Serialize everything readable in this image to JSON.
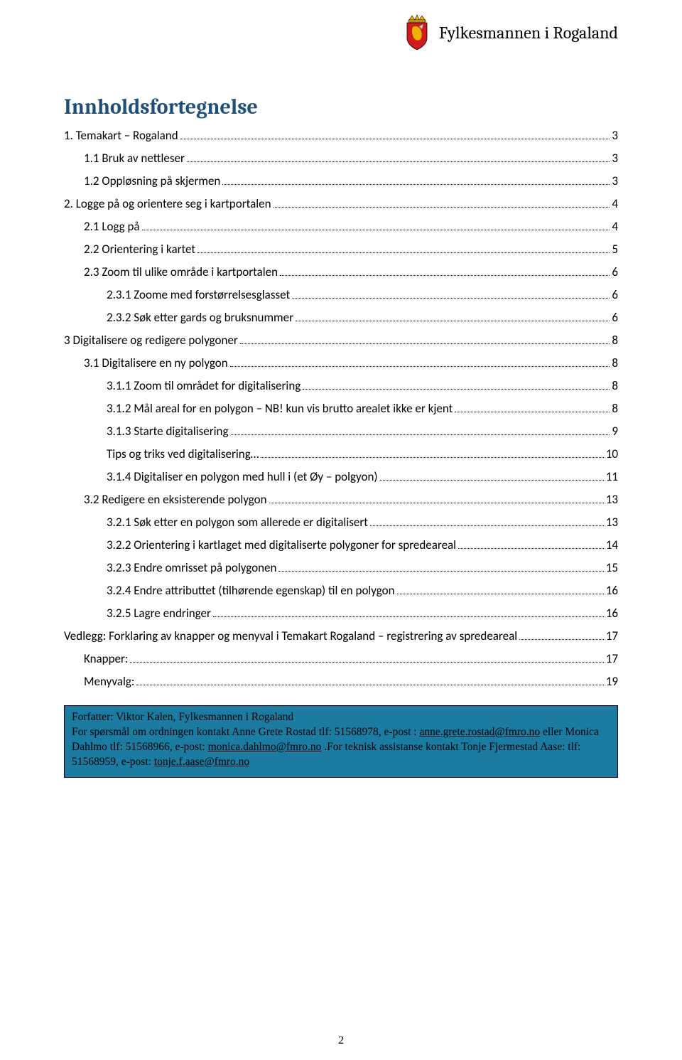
{
  "header": {
    "org_name": "Fylkesmannen i Rogaland"
  },
  "toc_title": "Innholdsfortegnelse",
  "toc_title_color": "#1f4e79",
  "toc": [
    {
      "level": 0,
      "label": "1.    Temakart – Rogaland",
      "page": "3"
    },
    {
      "level": 1,
      "label": "1.1 Bruk av nettleser",
      "page": "3"
    },
    {
      "level": 1,
      "label": "1.2 Oppløsning på skjermen",
      "page": "3"
    },
    {
      "level": 0,
      "label": "2.    Logge på og orientere seg i kartportalen",
      "page": "4"
    },
    {
      "level": 1,
      "label": "2.1 Logg på",
      "page": "4"
    },
    {
      "level": 1,
      "label": "2.2 Orientering i kartet",
      "page": "5"
    },
    {
      "level": 1,
      "label": "2.3 Zoom til ulike område i kartportalen",
      "page": "6"
    },
    {
      "level": 2,
      "label": "2.3.1 Zoome med forstørrelsesglasset",
      "page": "6"
    },
    {
      "level": 2,
      "label": "2.3.2 Søk etter gards og bruksnummer",
      "page": "6"
    },
    {
      "level": 0,
      "label": "3 Digitalisere og redigere polygoner",
      "page": "8"
    },
    {
      "level": 1,
      "label": "3.1 Digitalisere en ny polygon",
      "page": "8"
    },
    {
      "level": 2,
      "label": "3.1.1 Zoom til området for digitalisering",
      "page": "8"
    },
    {
      "level": 2,
      "label": "3.1.2 Mål areal for en polygon – NB! kun vis brutto arealet ikke er kjent",
      "page": "8"
    },
    {
      "level": 2,
      "label": "3.1.3 Starte digitalisering",
      "page": "9"
    },
    {
      "level": 2,
      "label": "Tips og triks ved digitalisering…",
      "page": "10"
    },
    {
      "level": 2,
      "label": "3.1.4 Digitaliser en polygon med hull i (et Øy – polgyon)",
      "page": "11"
    },
    {
      "level": 1,
      "label": "3.2 Redigere en eksisterende polygon",
      "page": "13"
    },
    {
      "level": 2,
      "label": "3.2.1 Søk etter en polygon som allerede er digitalisert",
      "page": "13"
    },
    {
      "level": 2,
      "label": "3.2.2 Orientering i kartlaget med digitaliserte polygoner for spredeareal",
      "page": "14"
    },
    {
      "level": 2,
      "label": "3.2.3 Endre omrisset på polygonen",
      "page": "15"
    },
    {
      "level": 2,
      "label": "3.2.4  Endre attributtet (tilhørende egenskap) til en polygon",
      "page": "16"
    },
    {
      "level": 2,
      "label": "3.2.5 Lagre endringer",
      "page": "16"
    },
    {
      "level": 0,
      "label": "Vedlegg: Forklaring av knapper og menyval i Temakart Rogaland – registrering av spredeareal",
      "page": "17"
    },
    {
      "level": 1,
      "label": "Knapper:",
      "page": "17"
    },
    {
      "level": 1,
      "label": "Menyvalg:",
      "page": "19"
    }
  ],
  "info_box": {
    "bg": "#1b7ba1",
    "author_line": "Forfatter: Viktor Kalen, Fylkesmannen i Rogaland",
    "contact_prefix": "For spørsmål om ordningen kontakt Anne Grete Rostad tlf: 51568978, e-post : ",
    "email1": "anne.grete.rostad@fmro.no",
    "mid1": " eller Monica Dahlmo tlf: 51568966, e-post: ",
    "email2": "monica.dahlmo@fmro.no",
    "mid2": " .For teknisk assistanse kontakt Tonje Fjermestad Aase: tlf: 51568959, e-post: ",
    "email3": "tonje.f.aase@fmro.no"
  },
  "page_number": "2",
  "crest_colors": {
    "red": "#d11b1f",
    "gold": "#f2b200",
    "blue": "#2c5aa0",
    "white": "#ffffff",
    "outline": "#000000"
  }
}
